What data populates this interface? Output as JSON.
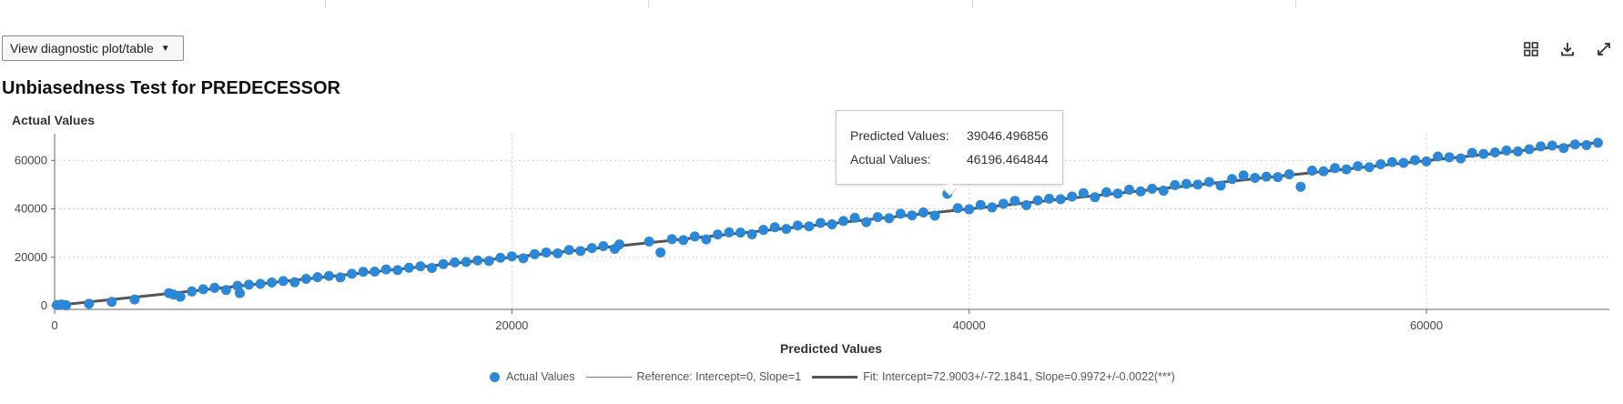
{
  "toolbar": {
    "diagnostic_button_label": "View diagnostic plot/table",
    "caret": "▼",
    "icons": [
      "grid-view-icon",
      "download-icon",
      "expand-icon"
    ]
  },
  "chart_data": {
    "type": "scatter",
    "title": "Unbiasedness Test for PREDECESSOR",
    "xlabel": "Predicted Values",
    "ylabel": "Actual Values",
    "xlim": [
      0,
      68000
    ],
    "ylim": [
      -1500,
      71000
    ],
    "xticks": [
      0,
      20000,
      40000,
      60000
    ],
    "xtick_labels": [
      "0",
      "20000",
      "40000",
      "60000"
    ],
    "yticks": [
      0,
      20000,
      40000,
      60000
    ],
    "ytick_labels": [
      "0",
      "20000",
      "40000",
      "60000"
    ],
    "grid": true,
    "legend_position": "bottom",
    "colors": {
      "points": "#2b87d8",
      "fit_line": "#555555",
      "reference_line": "#888888"
    },
    "series": [
      {
        "name": "Actual Values",
        "kind": "scatter",
        "points": [
          [
            100,
            300
          ],
          [
            300,
            500
          ],
          [
            500,
            200
          ],
          [
            1500,
            800
          ],
          [
            2500,
            1600
          ],
          [
            3500,
            2600
          ],
          [
            5000,
            5200
          ],
          [
            5200,
            4600
          ],
          [
            5500,
            3700
          ],
          [
            6000,
            5900
          ],
          [
            6500,
            6800
          ],
          [
            7000,
            7400
          ],
          [
            7500,
            6500
          ],
          [
            8000,
            8200
          ],
          [
            8100,
            5200
          ],
          [
            8500,
            8700
          ],
          [
            9000,
            9000
          ],
          [
            9500,
            9600
          ],
          [
            10000,
            10200
          ],
          [
            10500,
            9700
          ],
          [
            11000,
            11100
          ],
          [
            11500,
            11800
          ],
          [
            12000,
            12300
          ],
          [
            12500,
            11700
          ],
          [
            13000,
            13200
          ],
          [
            13500,
            14000
          ],
          [
            14000,
            14100
          ],
          [
            14500,
            15000
          ],
          [
            15000,
            14700
          ],
          [
            15500,
            15700
          ],
          [
            16000,
            16300
          ],
          [
            16500,
            15600
          ],
          [
            17000,
            17200
          ],
          [
            17500,
            17900
          ],
          [
            18000,
            18100
          ],
          [
            18500,
            18700
          ],
          [
            19000,
            18500
          ],
          [
            19500,
            19800
          ],
          [
            20000,
            20400
          ],
          [
            20500,
            19600
          ],
          [
            21000,
            21300
          ],
          [
            21500,
            22000
          ],
          [
            22000,
            21600
          ],
          [
            22500,
            23000
          ],
          [
            23000,
            22600
          ],
          [
            23500,
            23800
          ],
          [
            24000,
            24600
          ],
          [
            24500,
            23500
          ],
          [
            24700,
            25300
          ],
          [
            26000,
            26500
          ],
          [
            26500,
            22000
          ],
          [
            27000,
            27500
          ],
          [
            27500,
            27100
          ],
          [
            28000,
            28600
          ],
          [
            28500,
            27400
          ],
          [
            29000,
            29400
          ],
          [
            29500,
            30300
          ],
          [
            30000,
            30200
          ],
          [
            30500,
            29500
          ],
          [
            31000,
            31300
          ],
          [
            31500,
            32400
          ],
          [
            32000,
            31700
          ],
          [
            32500,
            33100
          ],
          [
            33000,
            32800
          ],
          [
            33500,
            34200
          ],
          [
            34000,
            33600
          ],
          [
            34500,
            35000
          ],
          [
            35000,
            36300
          ],
          [
            35500,
            34500
          ],
          [
            36000,
            36600
          ],
          [
            36500,
            36100
          ],
          [
            37000,
            38000
          ],
          [
            37500,
            37300
          ],
          [
            38000,
            38500
          ],
          [
            38500,
            37200
          ],
          [
            39046.5,
            46196.5
          ],
          [
            39500,
            40300
          ],
          [
            40000,
            39800
          ],
          [
            40500,
            41600
          ],
          [
            41000,
            40600
          ],
          [
            41500,
            42100
          ],
          [
            42000,
            43300
          ],
          [
            42500,
            41500
          ],
          [
            43000,
            43500
          ],
          [
            43500,
            44200
          ],
          [
            44000,
            44000
          ],
          [
            44500,
            45100
          ],
          [
            45000,
            46500
          ],
          [
            45500,
            44800
          ],
          [
            46000,
            46800
          ],
          [
            46500,
            46300
          ],
          [
            47000,
            47900
          ],
          [
            47500,
            47200
          ],
          [
            48000,
            48300
          ],
          [
            48500,
            47500
          ],
          [
            49000,
            49800
          ],
          [
            49500,
            50300
          ],
          [
            50000,
            50000
          ],
          [
            50500,
            51100
          ],
          [
            51000,
            49600
          ],
          [
            51500,
            52300
          ],
          [
            52000,
            53800
          ],
          [
            52500,
            52800
          ],
          [
            53000,
            53300
          ],
          [
            53500,
            53100
          ],
          [
            54000,
            54300
          ],
          [
            54500,
            49100
          ],
          [
            55000,
            55800
          ],
          [
            55500,
            55500
          ],
          [
            56000,
            56800
          ],
          [
            56500,
            56300
          ],
          [
            57000,
            57600
          ],
          [
            57500,
            57200
          ],
          [
            58000,
            58400
          ],
          [
            58500,
            59300
          ],
          [
            59000,
            59000
          ],
          [
            59500,
            60100
          ],
          [
            60000,
            59600
          ],
          [
            60500,
            61600
          ],
          [
            61000,
            61300
          ],
          [
            61500,
            60800
          ],
          [
            62000,
            63100
          ],
          [
            62500,
            62700
          ],
          [
            63000,
            63300
          ],
          [
            63500,
            64100
          ],
          [
            64000,
            63700
          ],
          [
            64500,
            64600
          ],
          [
            65000,
            65800
          ],
          [
            65500,
            66100
          ],
          [
            66000,
            65100
          ],
          [
            66500,
            66600
          ],
          [
            67000,
            66300
          ],
          [
            67500,
            67300
          ]
        ]
      },
      {
        "name": "Reference: Intercept=0, Slope=1",
        "kind": "line",
        "intercept": 0,
        "slope": 1
      },
      {
        "name": "Fit: Intercept=72.9003+/-72.1841, Slope=0.9972+/-0.0022(***)",
        "kind": "line",
        "intercept": 72.9003,
        "slope": 0.9972
      }
    ],
    "tooltip": {
      "predicted_label": "Predicted Values:",
      "predicted_value": "39046.496856",
      "actual_label": "Actual Values:",
      "actual_value": "46196.464844"
    },
    "legend": {
      "points_label": "Actual Values",
      "reference_label": "Reference: Intercept=0, Slope=1",
      "fit_label": "Fit: Intercept=72.9003+/-72.1841, Slope=0.9972+/-0.0022(***)"
    }
  }
}
